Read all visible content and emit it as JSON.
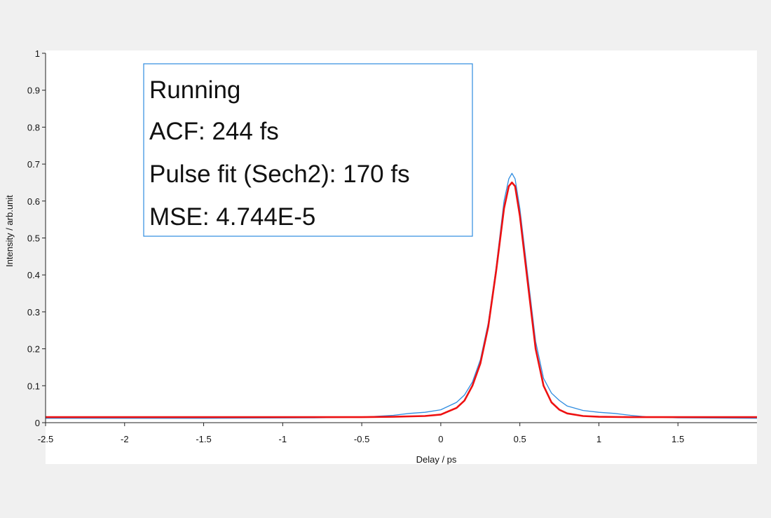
{
  "status": {
    "lines": [
      "Running",
      "ACF: 244 fs",
      "Pulse fit (Sech2): 170 fs",
      "MSE: 4.744E-5"
    ]
  },
  "colors": {
    "background": "#f0f0f0",
    "plot_area": "#ffffff",
    "measured": "#2f8ce0",
    "fit": "#ee1111",
    "info_border": "#2f8ce0"
  },
  "chart_data": {
    "type": "line",
    "xlabel": "Delay / ps",
    "ylabel": "Intensity / arb.unit",
    "xlim": [
      -2.5,
      2.0
    ],
    "ylim": [
      0,
      1
    ],
    "x_ticks": [
      "-2.5",
      "-2",
      "-1.5",
      "-1",
      "-0.5",
      "0",
      "0.5",
      "1",
      "1.5"
    ],
    "y_ticks": [
      "0",
      "0.1",
      "0.2",
      "0.3",
      "0.4",
      "0.5",
      "0.6",
      "0.7",
      "0.8",
      "0.9",
      "1"
    ],
    "grid": false,
    "series": [
      {
        "color": "#2f8ce0",
        "x": [
          -2.5,
          -1.5,
          -0.8,
          -0.5,
          -0.3,
          -0.2,
          -0.1,
          0.0,
          0.1,
          0.15,
          0.2,
          0.25,
          0.3,
          0.35,
          0.4,
          0.43,
          0.45,
          0.47,
          0.5,
          0.55,
          0.6,
          0.65,
          0.7,
          0.75,
          0.8,
          0.9,
          1.0,
          1.1,
          1.2,
          1.3,
          1.5,
          2.0
        ],
        "y": [
          0.012,
          0.012,
          0.013,
          0.015,
          0.02,
          0.025,
          0.028,
          0.035,
          0.055,
          0.075,
          0.11,
          0.17,
          0.27,
          0.42,
          0.6,
          0.66,
          0.675,
          0.66,
          0.58,
          0.4,
          0.22,
          0.12,
          0.08,
          0.06,
          0.045,
          0.033,
          0.028,
          0.025,
          0.02,
          0.016,
          0.013,
          0.012
        ]
      },
      {
        "color": "#ee1111",
        "x": [
          -2.5,
          -1.5,
          -0.8,
          -0.5,
          -0.3,
          -0.1,
          0.0,
          0.1,
          0.15,
          0.2,
          0.25,
          0.3,
          0.35,
          0.4,
          0.43,
          0.45,
          0.47,
          0.5,
          0.55,
          0.6,
          0.65,
          0.7,
          0.75,
          0.8,
          0.9,
          1.0,
          1.2,
          1.5,
          2.0
        ],
        "y": [
          0.015,
          0.015,
          0.015,
          0.015,
          0.016,
          0.018,
          0.022,
          0.04,
          0.06,
          0.1,
          0.16,
          0.26,
          0.41,
          0.58,
          0.64,
          0.65,
          0.64,
          0.56,
          0.38,
          0.2,
          0.1,
          0.055,
          0.035,
          0.025,
          0.018,
          0.016,
          0.015,
          0.015,
          0.015
        ]
      }
    ]
  }
}
